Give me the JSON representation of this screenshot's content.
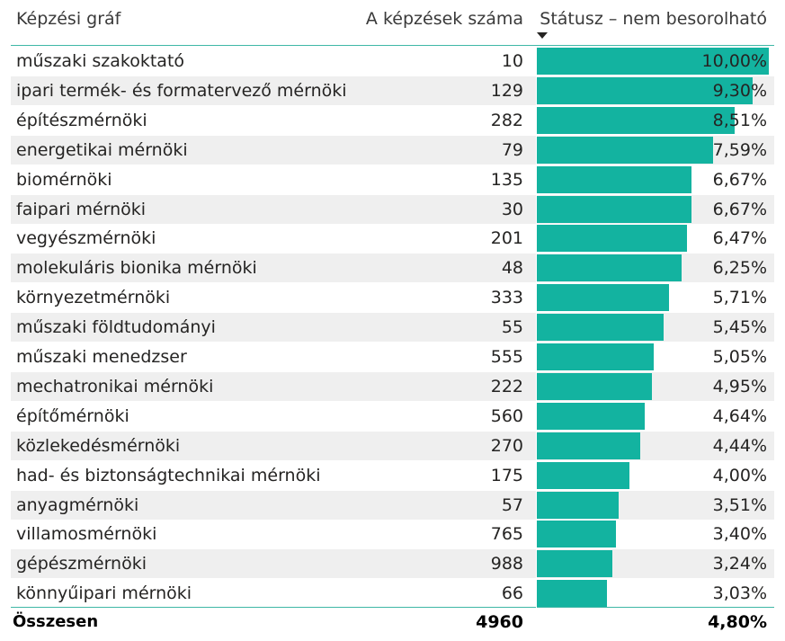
{
  "header": {
    "col_name": "Képzési gráf",
    "col_count": "A képzések száma",
    "col_status": "Státusz – nem besorolható"
  },
  "chart_data": {
    "type": "table",
    "columns": [
      "Képzési gráf",
      "A képzések száma",
      "Státusz – nem besorolható"
    ],
    "sort": {
      "column": "Státusz – nem besorolható",
      "order": "descending"
    },
    "bar_color": "#13b3a0",
    "bar_max": 10.0,
    "rows": [
      {
        "name": "műszaki szakoktató",
        "count": "10",
        "pct": "10,00%",
        "value": 10.0
      },
      {
        "name": "ipari termék- és formatervező mérnöki",
        "count": "129",
        "pct": "9,30%",
        "value": 9.3
      },
      {
        "name": "építészmérnöki",
        "count": "282",
        "pct": "8,51%",
        "value": 8.51
      },
      {
        "name": "energetikai mérnöki",
        "count": "79",
        "pct": "7,59%",
        "value": 7.59
      },
      {
        "name": "biomérnöki",
        "count": "135",
        "pct": "6,67%",
        "value": 6.67
      },
      {
        "name": "faipari mérnöki",
        "count": "30",
        "pct": "6,67%",
        "value": 6.67
      },
      {
        "name": "vegyészmérnöki",
        "count": "201",
        "pct": "6,47%",
        "value": 6.47
      },
      {
        "name": "molekuláris bionika mérnöki",
        "count": "48",
        "pct": "6,25%",
        "value": 6.25
      },
      {
        "name": "környezetmérnöki",
        "count": "333",
        "pct": "5,71%",
        "value": 5.71
      },
      {
        "name": "műszaki földtudományi",
        "count": "55",
        "pct": "5,45%",
        "value": 5.45
      },
      {
        "name": "műszaki menedzser",
        "count": "555",
        "pct": "5,05%",
        "value": 5.05
      },
      {
        "name": "mechatronikai mérnöki",
        "count": "222",
        "pct": "4,95%",
        "value": 4.95
      },
      {
        "name": "építőmérnöki",
        "count": "560",
        "pct": "4,64%",
        "value": 4.64
      },
      {
        "name": "közlekedésmérnöki",
        "count": "270",
        "pct": "4,44%",
        "value": 4.44
      },
      {
        "name": "had- és biztonságtechnikai mérnöki",
        "count": "175",
        "pct": "4,00%",
        "value": 4.0
      },
      {
        "name": "anyagmérnöki",
        "count": "57",
        "pct": "3,51%",
        "value": 3.51
      },
      {
        "name": "villamosmérnöki",
        "count": "765",
        "pct": "3,40%",
        "value": 3.4
      },
      {
        "name": "gépészmérnöki",
        "count": "988",
        "pct": "3,24%",
        "value": 3.24
      },
      {
        "name": "könnyűipari mérnöki",
        "count": "66",
        "pct": "3,03%",
        "value": 3.03
      }
    ],
    "total": {
      "label": "Összesen",
      "count": "4960",
      "pct": "4,80%"
    }
  }
}
